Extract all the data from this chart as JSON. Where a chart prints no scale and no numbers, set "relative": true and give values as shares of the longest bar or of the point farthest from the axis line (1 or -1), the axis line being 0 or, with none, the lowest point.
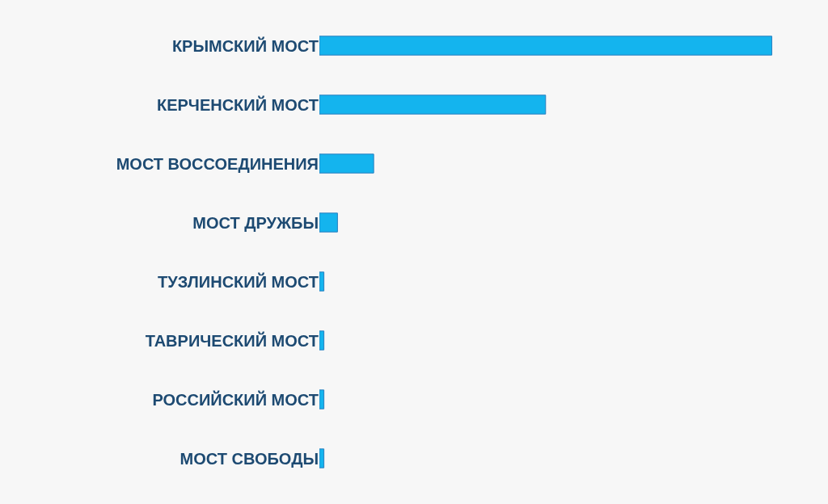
{
  "chart_data": {
    "type": "bar",
    "orientation": "horizontal",
    "relative": true,
    "categories": [
      "КРЫМСКИЙ МОСТ",
      "КЕРЧЕНСКИЙ МОСТ",
      "МОСТ ВОССОЕДИНЕНИЯ",
      "МОСТ ДРУЖБЫ",
      "ТУЗЛИНСКИЙ МОСТ",
      "ТАВРИЧЕСКИЙ МОСТ",
      "РОССИЙСКИЙ МОСТ",
      "МОСТ СВОБОДЫ"
    ],
    "values": [
      1,
      0.5,
      0.12,
      0.04,
      0.01,
      0.01,
      0.01,
      0.01
    ],
    "color": "#14b4ee"
  }
}
